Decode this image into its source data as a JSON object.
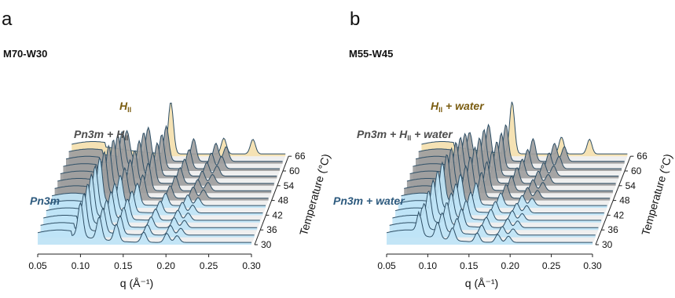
{
  "colors": {
    "hii_fill": "#f4dfae",
    "mixed_fill": "#9e9e9e",
    "cubic_fill": "#bfe4f6",
    "line": "#2e4f66",
    "hii_text": "#7a5c10",
    "mixed_text": "#4d4d4d",
    "cubic_text": "#2d5a7e"
  },
  "figure_labels": {
    "ylabel": "Temperature (°C)",
    "xlabel": "q (Å⁻¹)"
  },
  "chart_data": [
    {
      "type": "line",
      "panel_label": "a",
      "title": "M70-W30",
      "xlabel": "q (Å⁻¹)",
      "ylabel": "Temperature (°C)",
      "xlim": [
        0.05,
        0.3
      ],
      "x_ticks": [
        "0.05",
        "0.10",
        "0.15",
        "0.20",
        "0.25",
        "0.30"
      ],
      "temperature_ticks": [
        "30",
        "36",
        "42",
        "48",
        "54",
        "60",
        "66"
      ],
      "series": [
        {
          "temperature": 30,
          "phase": "Pn3m",
          "peaks": [
            [
              0.1,
              60
            ],
            [
              0.122,
              40
            ],
            [
              0.142,
              30
            ],
            [
              0.174,
              18
            ],
            [
              0.201,
              16
            ],
            [
              0.213,
              12
            ]
          ]
        },
        {
          "temperature": 33,
          "phase": "Pn3m",
          "peaks": [
            [
              0.101,
              64
            ],
            [
              0.123,
              42
            ],
            [
              0.143,
              32
            ],
            [
              0.175,
              18
            ],
            [
              0.202,
              17
            ],
            [
              0.214,
              12
            ]
          ]
        },
        {
          "temperature": 36,
          "phase": "Pn3m",
          "peaks": [
            [
              0.102,
              68
            ],
            [
              0.124,
              44
            ],
            [
              0.144,
              34
            ],
            [
              0.176,
              19
            ],
            [
              0.203,
              18
            ],
            [
              0.215,
              13
            ]
          ]
        },
        {
          "temperature": 39,
          "phase": "Pn3m",
          "peaks": [
            [
              0.103,
              72
            ],
            [
              0.126,
              46
            ],
            [
              0.145,
              36
            ],
            [
              0.178,
              20
            ],
            [
              0.204,
              18
            ],
            [
              0.216,
              13
            ]
          ]
        },
        {
          "temperature": 42,
          "phase": "Pn3m",
          "peaks": [
            [
              0.104,
              74
            ],
            [
              0.127,
              48
            ],
            [
              0.147,
              37
            ],
            [
              0.18,
              21
            ],
            [
              0.206,
              19
            ],
            [
              0.218,
              14
            ]
          ]
        },
        {
          "temperature": 45,
          "phase": "Pn3m",
          "peaks": [
            [
              0.106,
              76
            ],
            [
              0.13,
              50
            ],
            [
              0.15,
              38
            ],
            [
              0.183,
              22
            ],
            [
              0.209,
              19
            ],
            [
              0.221,
              14
            ]
          ]
        },
        {
          "temperature": 48,
          "phase": "Pn3m + HII",
          "peaks": [
            [
              0.108,
              74
            ],
            [
              0.132,
              50
            ],
            [
              0.153,
              40
            ],
            [
              0.185,
              22
            ],
            [
              0.212,
              20
            ],
            [
              0.224,
              15
            ]
          ]
        },
        {
          "temperature": 51,
          "phase": "Pn3m + HII",
          "peaks": [
            [
              0.11,
              72
            ],
            [
              0.135,
              52
            ],
            [
              0.156,
              48
            ],
            [
              0.188,
              26
            ],
            [
              0.214,
              20
            ],
            [
              0.226,
              15
            ]
          ]
        },
        {
          "temperature": 54,
          "phase": "Pn3m + HII",
          "peaks": [
            [
              0.112,
              70
            ],
            [
              0.137,
              56
            ],
            [
              0.158,
              54
            ],
            [
              0.19,
              28
            ],
            [
              0.216,
              22
            ],
            [
              0.228,
              16
            ]
          ]
        },
        {
          "temperature": 57,
          "phase": "Pn3m + HII",
          "peaks": [
            [
              0.114,
              66
            ],
            [
              0.139,
              60
            ],
            [
              0.16,
              58
            ],
            [
              0.192,
              30
            ],
            [
              0.218,
              24
            ],
            [
              0.23,
              18
            ]
          ]
        },
        {
          "temperature": 60,
          "phase": "Pn3m + HII",
          "peaks": [
            [
              0.116,
              60
            ],
            [
              0.141,
              62
            ],
            [
              0.162,
              60
            ],
            [
              0.194,
              34
            ],
            [
              0.22,
              28
            ],
            [
              0.232,
              22
            ]
          ]
        },
        {
          "temperature": 63,
          "phase": "Pn3m + HII",
          "peaks": [
            [
              0.118,
              48
            ],
            [
              0.143,
              58
            ],
            [
              0.164,
              62
            ],
            [
              0.196,
              40
            ],
            [
              0.222,
              32
            ],
            [
              0.234,
              26
            ]
          ]
        },
        {
          "temperature": 66,
          "phase": "HII",
          "peaks": [
            [
              0.166,
              92
            ],
            [
              0.228,
              28
            ],
            [
              0.262,
              26
            ]
          ]
        }
      ],
      "annotations": [
        {
          "text": "H",
          "sub": "II",
          "suffix": "",
          "phase": "hii"
        },
        {
          "text": "Pn3m + H",
          "sub": "II",
          "suffix": "",
          "phase": "mixed"
        },
        {
          "text": "Pn3m",
          "sub": "",
          "suffix": "",
          "phase": "cubic"
        }
      ]
    },
    {
      "type": "line",
      "panel_label": "b",
      "title": "M55-W45",
      "xlabel": "q (Å⁻¹)",
      "ylabel": "Temperature (°C)",
      "xlim": [
        0.05,
        0.3
      ],
      "x_ticks": [
        "0.05",
        "0.10",
        "0.15",
        "0.20",
        "0.25",
        "0.30"
      ],
      "temperature_ticks": [
        "30",
        "36",
        "42",
        "48",
        "54",
        "60",
        "66"
      ],
      "series": [
        {
          "temperature": 30,
          "phase": "Pn3m + water",
          "peaks": [
            [
              0.09,
              36
            ],
            [
              0.112,
              28
            ],
            [
              0.13,
              22
            ],
            [
              0.16,
              16
            ],
            [
              0.185,
              14
            ],
            [
              0.198,
              11
            ]
          ]
        },
        {
          "temperature": 33,
          "phase": "Pn3m + water",
          "peaks": [
            [
              0.092,
              44
            ],
            [
              0.114,
              32
            ],
            [
              0.132,
              26
            ],
            [
              0.162,
              17
            ],
            [
              0.187,
              15
            ],
            [
              0.2,
              11
            ]
          ]
        },
        {
          "temperature": 36,
          "phase": "Pn3m + water",
          "peaks": [
            [
              0.094,
              54
            ],
            [
              0.116,
              38
            ],
            [
              0.134,
              30
            ],
            [
              0.164,
              18
            ],
            [
              0.19,
              16
            ],
            [
              0.202,
              12
            ]
          ]
        },
        {
          "temperature": 39,
          "phase": "Pn3m + water",
          "peaks": [
            [
              0.096,
              60
            ],
            [
              0.118,
              42
            ],
            [
              0.136,
              32
            ],
            [
              0.166,
              19
            ],
            [
              0.192,
              17
            ],
            [
              0.204,
              12
            ]
          ]
        },
        {
          "temperature": 42,
          "phase": "Pn3m + water",
          "peaks": [
            [
              0.098,
              64
            ],
            [
              0.12,
              46
            ],
            [
              0.138,
              34
            ],
            [
              0.168,
              20
            ],
            [
              0.194,
              17
            ],
            [
              0.206,
              13
            ]
          ]
        },
        {
          "temperature": 45,
          "phase": "Pn3m + water",
          "peaks": [
            [
              0.1,
              66
            ],
            [
              0.122,
              50
            ],
            [
              0.141,
              38
            ],
            [
              0.171,
              22
            ],
            [
              0.197,
              18
            ],
            [
              0.209,
              13
            ]
          ]
        },
        {
          "temperature": 48,
          "phase": "Pn3m + HII + water",
          "peaks": [
            [
              0.102,
              68
            ],
            [
              0.125,
              52
            ],
            [
              0.144,
              44
            ],
            [
              0.174,
              24
            ],
            [
              0.2,
              19
            ],
            [
              0.212,
              14
            ]
          ]
        },
        {
          "temperature": 51,
          "phase": "Pn3m + HII + water",
          "peaks": [
            [
              0.104,
              66
            ],
            [
              0.127,
              56
            ],
            [
              0.147,
              50
            ],
            [
              0.177,
              26
            ],
            [
              0.203,
              20
            ],
            [
              0.215,
              15
            ]
          ]
        },
        {
          "temperature": 54,
          "phase": "Pn3m + HII + water",
          "peaks": [
            [
              0.106,
              64
            ],
            [
              0.129,
              60
            ],
            [
              0.15,
              56
            ],
            [
              0.18,
              28
            ],
            [
              0.206,
              22
            ],
            [
              0.218,
              16
            ]
          ]
        },
        {
          "temperature": 57,
          "phase": "Pn3m + HII + water",
          "peaks": [
            [
              0.108,
              60
            ],
            [
              0.131,
              64
            ],
            [
              0.152,
              60
            ],
            [
              0.183,
              30
            ],
            [
              0.209,
              24
            ],
            [
              0.221,
              18
            ]
          ]
        },
        {
          "temperature": 60,
          "phase": "Pn3m + HII + water",
          "peaks": [
            [
              0.11,
              54
            ],
            [
              0.133,
              66
            ],
            [
              0.154,
              62
            ],
            [
              0.186,
              34
            ],
            [
              0.212,
              28
            ],
            [
              0.224,
              22
            ]
          ]
        },
        {
          "temperature": 63,
          "phase": "Pn3m + HII + water",
          "peaks": [
            [
              0.112,
              44
            ],
            [
              0.135,
              62
            ],
            [
              0.156,
              64
            ],
            [
              0.189,
              40
            ],
            [
              0.215,
              32
            ],
            [
              0.227,
              26
            ]
          ]
        },
        {
          "temperature": 66,
          "phase": "HII + water",
          "peaks": [
            [
              0.16,
              92
            ],
            [
              0.22,
              30
            ],
            [
              0.254,
              26
            ]
          ]
        }
      ],
      "annotations": [
        {
          "text": "H",
          "sub": "II",
          "suffix": " + water",
          "phase": "hii"
        },
        {
          "text": "Pn3m + H",
          "sub": "II",
          "suffix": " + water",
          "phase": "mixed"
        },
        {
          "text": "Pn3m + water",
          "sub": "",
          "suffix": "",
          "phase": "cubic"
        }
      ]
    }
  ]
}
